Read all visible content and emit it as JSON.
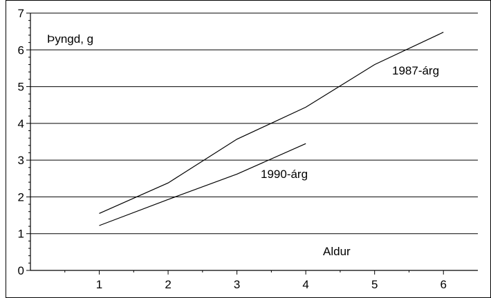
{
  "chart_data": {
    "type": "line",
    "ylabel": "Þyngd, g",
    "xlabel": "Aldur",
    "xlim": [
      0,
      6.5
    ],
    "ylim": [
      0,
      7
    ],
    "xticks": [
      1,
      2,
      3,
      4,
      5,
      6
    ],
    "yticks": [
      0,
      1,
      2,
      3,
      4,
      5,
      6,
      7
    ],
    "grid": true,
    "series": [
      {
        "name": "1987-árg",
        "x": [
          1,
          2,
          3,
          4,
          5,
          6
        ],
        "y": [
          1.55,
          2.38,
          3.57,
          4.44,
          5.6,
          6.48
        ]
      },
      {
        "name": "1990-árg",
        "x": [
          1,
          2,
          3,
          4
        ],
        "y": [
          1.22,
          1.93,
          2.62,
          3.45
        ]
      }
    ]
  }
}
